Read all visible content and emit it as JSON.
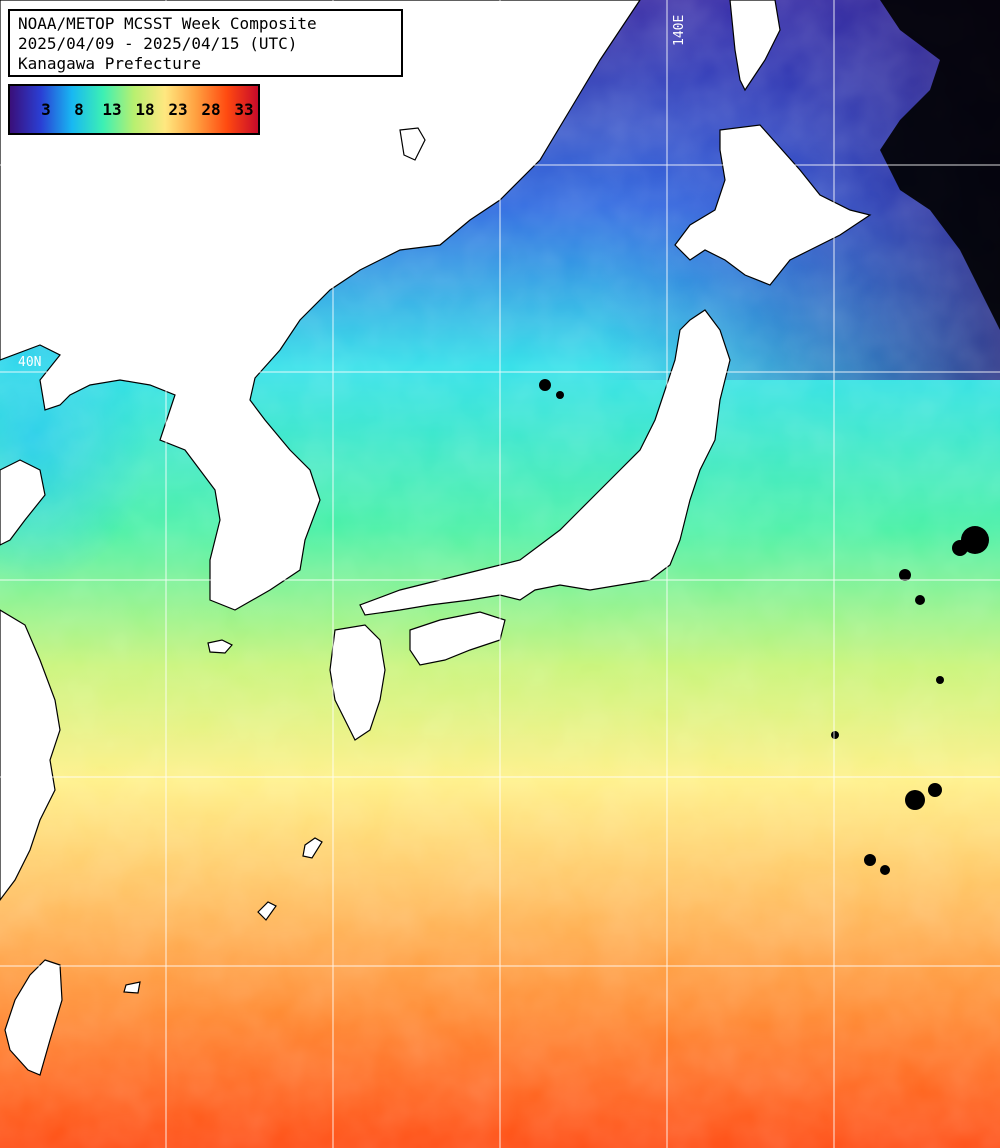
{
  "header": {
    "line1": "NOAA/METOP MCSST Week Composite",
    "line2": "2025/04/09 - 2025/04/15 (UTC)",
    "line3": "Kanagawa Prefecture"
  },
  "legend": {
    "ticks": [
      "3",
      "8",
      "13",
      "18",
      "23",
      "28",
      "33"
    ],
    "colors": [
      "#3a0f7a",
      "#2a3fd4",
      "#18b8f2",
      "#3cf0b4",
      "#b8f070",
      "#ffe880",
      "#ffa040",
      "#ff4a10",
      "#c80a2a"
    ]
  },
  "grid_labels": {
    "lat": "40N",
    "lon": "140E"
  },
  "colors": {
    "land": "#ffffff",
    "coast": "#000000",
    "grid": "#ffffff"
  }
}
